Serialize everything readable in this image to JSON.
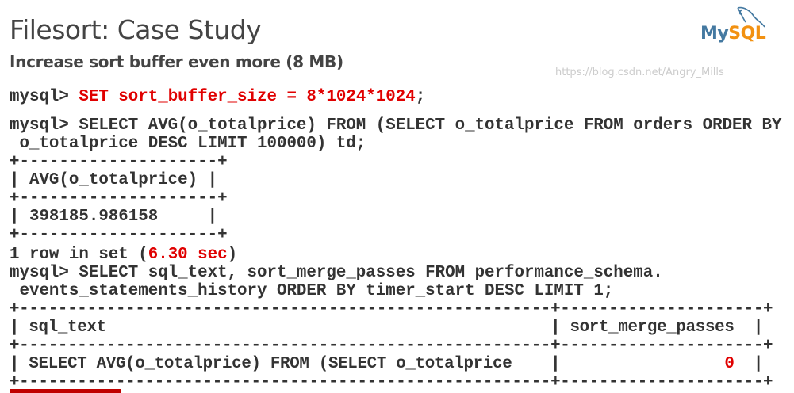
{
  "slide": {
    "title": "Filesort: Case Study",
    "subtitle": "Increase sort buffer even more (8 MB)"
  },
  "logo": {
    "text_my": "My",
    "text_sql": "SQL",
    "colors": {
      "my": "#4479a1",
      "sql": "#f29111"
    }
  },
  "code": {
    "prompt": "mysql> ",
    "set_stmt": "SET sort_buffer_size = 8*1024*1024",
    "set_end": ";",
    "q1_line1": "mysql> SELECT AVG(o_totalprice) FROM (SELECT o_totalprice FROM orders ORDER BY",
    "q1_line2": " o_totalprice DESC LIMIT 100000) td;",
    "t1_border": "+--------------------+",
    "t1_header": "| AVG(o_totalprice) |",
    "t1_row": "| 398185.986158     |",
    "rows_prefix": "1 row in set (",
    "time": "6.30 sec",
    "rows_suffix": ")",
    "q2_line1": "mysql> SELECT sql_text, sort_merge_passes FROM performance_schema.",
    "q2_line2": " events_statements_history ORDER BY timer_start DESC LIMIT 1;",
    "t2_border": "+-------------------------------------------------------+---------------------+",
    "t2_header": "| sql_text                                              | sort_merge_passes  |",
    "t2_row_prefix": "| SELECT AVG(o_totalprice) FROM (SELECT o_totalprice    |                 ",
    "t2_row_value": "0",
    "t2_row_suffix": "  |"
  },
  "watermark": "https://blog.csdn.net/Angry_Mills",
  "accent_color": "#e00000"
}
